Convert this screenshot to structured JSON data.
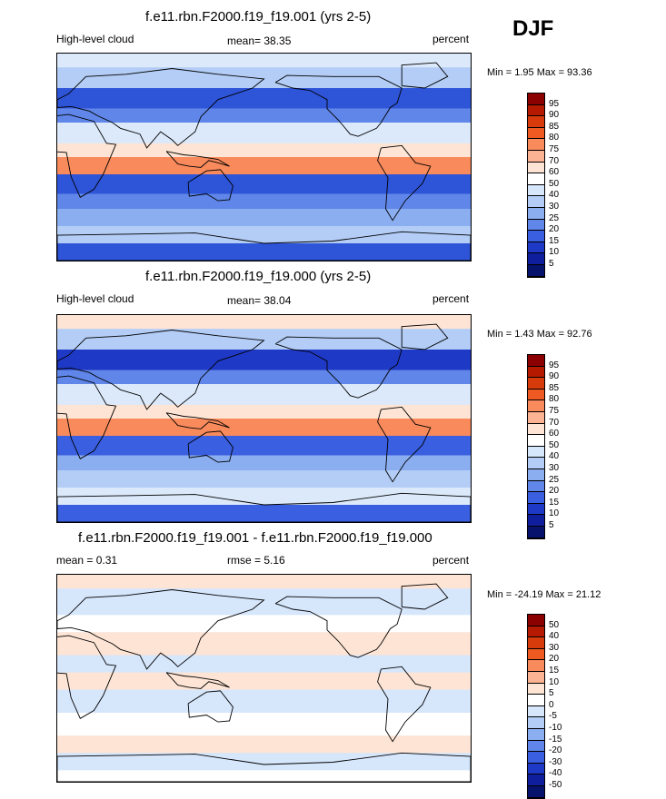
{
  "season": "DJF",
  "panels": [
    {
      "title": "f.e11.rbn.F2000.f19_f19.001 (yrs 2-5)",
      "left_label": "High-level cloud",
      "center_label": "mean=  38.35",
      "right_label": "percent",
      "minmax": "Min =  1.95 Max =  93.36",
      "colorbar": {
        "labels": [
          "95",
          "90",
          "85",
          "80",
          "75",
          "70",
          "60",
          "50",
          "40",
          "30",
          "25",
          "20",
          "15",
          "10",
          "5"
        ],
        "colors": [
          "#8b0000",
          "#b51a00",
          "#d83b0b",
          "#ef5a22",
          "#f98a5c",
          "#fbb394",
          "#fde4d4",
          "#ffffff",
          "#d6e6fb",
          "#b3cdf6",
          "#8aaef0",
          "#5f86e8",
          "#3a5fe0",
          "#1f39c7",
          "#0f1e9c",
          "#06126b"
        ]
      },
      "field": {
        "bands": [
          {
            "lat": 78,
            "color": "#dbe9fb"
          },
          {
            "lat": 60,
            "color": "#b3cdf6"
          },
          {
            "lat": 42,
            "color": "#2e54d8"
          },
          {
            "lat": 30,
            "color": "#5f86e8"
          },
          {
            "lat": 12,
            "color": "#dbe9fb"
          },
          {
            "lat": 0,
            "color": "#fde4d4"
          },
          {
            "lat": -15,
            "color": "#f98a5c"
          },
          {
            "lat": -32,
            "color": "#2e54d8"
          },
          {
            "lat": -45,
            "color": "#5f86e8"
          },
          {
            "lat": -60,
            "color": "#8aaef0"
          },
          {
            "lat": -75,
            "color": "#b3cdf6"
          },
          {
            "lat": -90,
            "color": "#2e54d8"
          }
        ]
      }
    },
    {
      "title": "f.e11.rbn.F2000.f19_f19.000 (yrs 2-5)",
      "left_label": "High-level cloud",
      "center_label": "mean=  38.04",
      "right_label": "percent",
      "minmax": "Min =  1.43 Max =  92.76",
      "colorbar": {
        "labels": [
          "95",
          "90",
          "85",
          "80",
          "75",
          "70",
          "60",
          "50",
          "40",
          "30",
          "25",
          "20",
          "15",
          "10",
          "5"
        ],
        "colors": [
          "#8b0000",
          "#b51a00",
          "#d83b0b",
          "#ef5a22",
          "#f98a5c",
          "#fbb394",
          "#fde4d4",
          "#ffffff",
          "#d6e6fb",
          "#b3cdf6",
          "#8aaef0",
          "#5f86e8",
          "#3a5fe0",
          "#1f39c7",
          "#0f1e9c",
          "#06126b"
        ]
      },
      "field": {
        "bands": [
          {
            "lat": 78,
            "color": "#fde4d4"
          },
          {
            "lat": 60,
            "color": "#b3cdf6"
          },
          {
            "lat": 42,
            "color": "#1f39c7"
          },
          {
            "lat": 30,
            "color": "#5f86e8"
          },
          {
            "lat": 12,
            "color": "#dbe9fb"
          },
          {
            "lat": 0,
            "color": "#fde4d4"
          },
          {
            "lat": -15,
            "color": "#f98a5c"
          },
          {
            "lat": -32,
            "color": "#3a5fe0"
          },
          {
            "lat": -45,
            "color": "#8aaef0"
          },
          {
            "lat": -60,
            "color": "#b3cdf6"
          },
          {
            "lat": -75,
            "color": "#dbe9fb"
          },
          {
            "lat": -90,
            "color": "#3a5fe0"
          }
        ]
      }
    },
    {
      "title": "f.e11.rbn.F2000.f19_f19.001 - f.e11.rbn.F2000.f19_f19.000",
      "left_label": "mean =   0.31",
      "center_label": "rmse =   5.16",
      "right_label": "percent",
      "minmax": "Min = -24.19 Max =  21.12",
      "colorbar": {
        "labels": [
          "50",
          "40",
          "30",
          "20",
          "15",
          "10",
          "5",
          "0",
          "-5",
          "-10",
          "-15",
          "-20",
          "-30",
          "-40",
          "-50"
        ],
        "colors": [
          "#8b0000",
          "#b51a00",
          "#d83b0b",
          "#ef5a22",
          "#f98a5c",
          "#fbb394",
          "#fde4d4",
          "#ffffff",
          "#d6e6fb",
          "#b3cdf6",
          "#8aaef0",
          "#5f86e8",
          "#3a5fe0",
          "#1f39c7",
          "#0f1e9c",
          "#06126b"
        ]
      },
      "field": {
        "bands": [
          {
            "lat": 78,
            "color": "#fde4d4"
          },
          {
            "lat": 55,
            "color": "#d6e6fb"
          },
          {
            "lat": 40,
            "color": "#ffffff"
          },
          {
            "lat": 20,
            "color": "#fde4d4"
          },
          {
            "lat": 5,
            "color": "#d6e6fb"
          },
          {
            "lat": -10,
            "color": "#fde4d4"
          },
          {
            "lat": -30,
            "color": "#d6e6fb"
          },
          {
            "lat": -50,
            "color": "#ffffff"
          },
          {
            "lat": -65,
            "color": "#fde4d4"
          },
          {
            "lat": -80,
            "color": "#d6e6fb"
          },
          {
            "lat": -90,
            "color": "#ffffff"
          }
        ]
      }
    }
  ]
}
